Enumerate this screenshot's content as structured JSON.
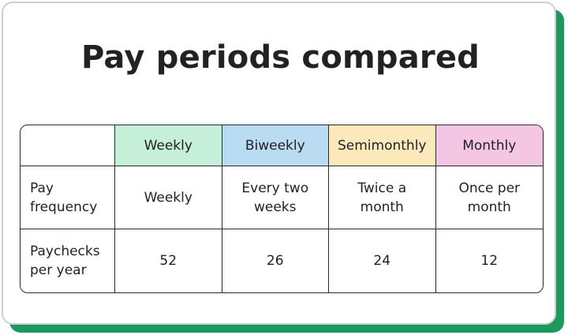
{
  "title": "Pay periods compared",
  "columns": [
    {
      "label": "Weekly",
      "color": "#c6efd9"
    },
    {
      "label": "Biweekly",
      "color": "#b9dcf3"
    },
    {
      "label": "Semimonthly",
      "color": "#fbe9bc"
    },
    {
      "label": "Monthly",
      "color": "#f4c6e3"
    }
  ],
  "rows": [
    {
      "label_line1": "Pay",
      "label_line2": "frequency",
      "cells": [
        {
          "line1": "Weekly",
          "line2": ""
        },
        {
          "line1": "Every two",
          "line2": "weeks"
        },
        {
          "line1": "Twice a",
          "line2": "month"
        },
        {
          "line1": "Once per",
          "line2": "month"
        }
      ]
    },
    {
      "label_line1": "Paychecks",
      "label_line2": "per year",
      "cells": [
        {
          "line1": "52",
          "line2": ""
        },
        {
          "line1": "26",
          "line2": ""
        },
        {
          "line1": "24",
          "line2": ""
        },
        {
          "line1": "12",
          "line2": ""
        }
      ]
    }
  ],
  "colors": {
    "accent_shadow": "#1b9a5b",
    "border": "#2a2a2a"
  }
}
